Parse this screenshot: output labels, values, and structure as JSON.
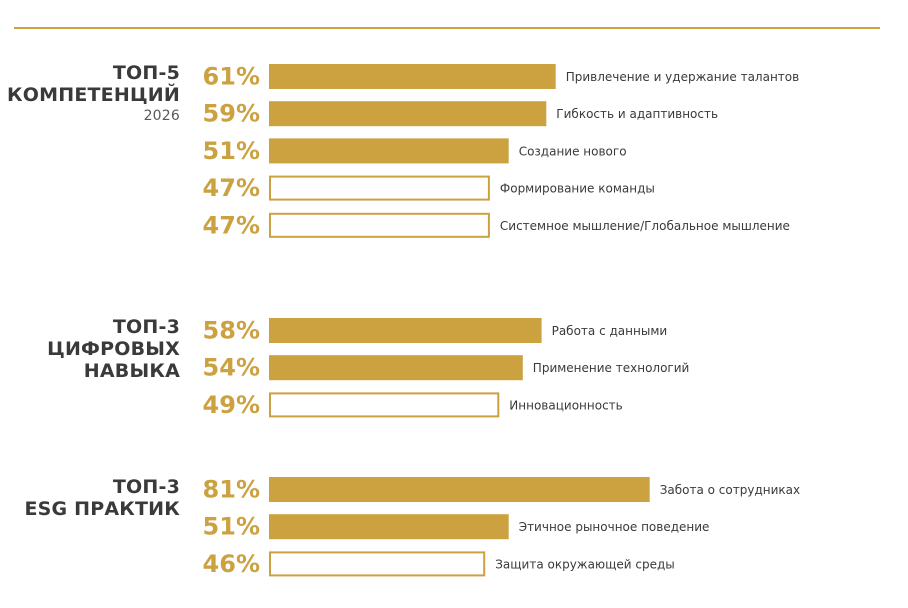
{
  "chart_data": {
    "type": "bar",
    "orientation": "horizontal",
    "value_unit": "%",
    "xlim": [
      0,
      100
    ],
    "colors": {
      "accent": "#cca140",
      "outline": "#cca140",
      "label_text": "#3a3a3c",
      "year_text": "#58585a"
    },
    "groups": [
      {
        "title_lines": [
          "ТОП-5",
          "КОМПЕТЕНЦИЙ"
        ],
        "subtitle": "2026",
        "items": [
          {
            "value": 61,
            "value_label": "61%",
            "label": "Привлечение и удержание талантов",
            "filled": true
          },
          {
            "value": 59,
            "value_label": "59%",
            "label": "Гибкость и адаптивность",
            "filled": true
          },
          {
            "value": 51,
            "value_label": "51%",
            "label": "Создание нового",
            "filled": true
          },
          {
            "value": 47,
            "value_label": "47%",
            "label": "Формирование команды",
            "filled": false
          },
          {
            "value": 47,
            "value_label": "47%",
            "label": "Системное мышление/Глобальное мышление",
            "filled": false
          }
        ]
      },
      {
        "title_lines": [
          "ТОП-3",
          "ЦИФРОВЫХ",
          "НАВЫКА"
        ],
        "subtitle": "",
        "items": [
          {
            "value": 58,
            "value_label": "58%",
            "label": "Работа с данными",
            "filled": true
          },
          {
            "value": 54,
            "value_label": "54%",
            "label": "Применение технологий",
            "filled": true
          },
          {
            "value": 49,
            "value_label": "49%",
            "label": "Инновационность",
            "filled": false
          }
        ]
      },
      {
        "title_lines": [
          "ТОП-3",
          "ESG ПРАКТИК"
        ],
        "subtitle": "",
        "items": [
          {
            "value": 81,
            "value_label": "81%",
            "label": "Забота о сотрудниках",
            "filled": true
          },
          {
            "value": 51,
            "value_label": "51%",
            "label": "Этичное рыночное поведение",
            "filled": true
          },
          {
            "value": 46,
            "value_label": "46%",
            "label": "Защита окружающей среды",
            "filled": false
          }
        ]
      }
    ]
  }
}
